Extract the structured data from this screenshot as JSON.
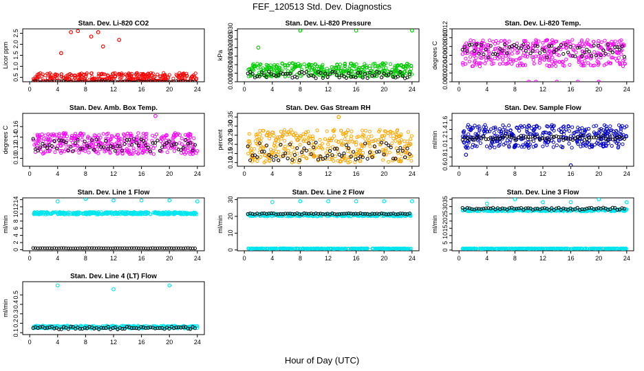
{
  "title": "FEF_120513  Std. Dev. Diagnostics",
  "xlabel": "Hour of Day (UTC)",
  "chart_data": [
    {
      "type": "scatter",
      "title": "Stan. Dev. Li-820 CO2",
      "ylabel": "Licor ppm",
      "xlim": [
        0,
        24
      ],
      "ylim": [
        0.3,
        2.7
      ],
      "xticks": [
        0,
        4,
        8,
        12,
        16,
        20,
        24
      ],
      "yticks": [
        "0.5",
        "1.0",
        "1.5",
        "2.0",
        "2.5"
      ],
      "ytick_values": [
        0.5,
        1.0,
        1.5,
        2.0,
        2.5
      ],
      "series": [
        {
          "color": "#ff0000",
          "base": 0.45,
          "spread": 0.25,
          "outliers": [
            [
              5.9,
              2.55
            ],
            [
              6.9,
              2.6
            ],
            [
              9.8,
              2.55
            ],
            [
              8.8,
              2.35
            ],
            [
              12.8,
              2.2
            ],
            [
              4.5,
              1.6
            ],
            [
              10.5,
              1.9
            ]
          ]
        },
        {
          "color": "#000000",
          "base": 0.3,
          "spread": 0.03,
          "outliers": []
        }
      ]
    },
    {
      "type": "scatter",
      "title": "Stan. Dev. Li-820 Pressure",
      "ylabel": "kPa",
      "xlim": [
        0,
        24
      ],
      "ylim": [
        0,
        0.031
      ],
      "xticks": [
        0,
        4,
        8,
        12,
        16,
        20,
        24
      ],
      "yticks": [
        "0.000",
        "0.005",
        "0.010",
        "0.015",
        "0.020",
        "0.025",
        "0.030"
      ],
      "ytick_values": [
        0,
        0.005,
        0.01,
        0.015,
        0.02,
        0.025,
        0.03
      ],
      "series": [
        {
          "color": "#00cc00",
          "base": 0.007,
          "spread": 0.004,
          "outliers": [
            [
              8,
              0.03
            ],
            [
              16,
              0.03
            ],
            [
              24,
              0.03
            ],
            [
              2,
              0.02
            ]
          ]
        },
        {
          "color": "#000000",
          "base": 0.004,
          "spread": 0.002,
          "outliers": []
        }
      ]
    },
    {
      "type": "scatter",
      "title": "Stan. Dev. Li-820 Temp.",
      "ylabel": "degrees C",
      "xlim": [
        0,
        24
      ],
      "ylim": [
        0,
        0.012
      ],
      "xticks": [
        0,
        4,
        8,
        12,
        16,
        20,
        24
      ],
      "yticks": [
        "0.000",
        "0.002",
        "0.004",
        "0.006",
        "0.008",
        "0.010",
        "0.012"
      ],
      "ytick_values": [
        0,
        0.002,
        0.004,
        0.006,
        0.008,
        0.01,
        0.012
      ],
      "series": [
        {
          "color": "#ff00ff",
          "base": 0.0065,
          "spread": 0.003,
          "outliers": [
            [
              10,
              0.0
            ],
            [
              11,
              0.0
            ],
            [
              14,
              0.0
            ],
            [
              17,
              0.0
            ],
            [
              20,
              0.0
            ]
          ]
        },
        {
          "color": "#000000",
          "base": 0.007,
          "spread": 0.0015,
          "outliers": []
        }
      ]
    },
    {
      "type": "scatter",
      "title": "Stan. Dev. Amb. Box Temp.",
      "ylabel": "degrees C",
      "xlim": [
        0,
        24
      ],
      "ylim": [
        0.085,
        0.185
      ],
      "xticks": [
        0,
        4,
        8,
        12,
        16,
        20,
        24
      ],
      "yticks": [
        "0.10",
        "0.12",
        "0.14",
        "0.16"
      ],
      "ytick_values": [
        0.1,
        0.12,
        0.14,
        0.16
      ],
      "series": [
        {
          "color": "#ff00ff",
          "base": 0.128,
          "spread": 0.02,
          "outliers": [
            [
              18,
              0.18
            ]
          ]
        },
        {
          "color": "#000000",
          "base": 0.125,
          "spread": 0.012,
          "outliers": []
        }
      ]
    },
    {
      "type": "scatter",
      "title": "Stan. Dev. Gas Stream RH",
      "ylabel": "percent",
      "xlim": [
        0,
        24
      ],
      "ylim": [
        0.08,
        0.37
      ],
      "xticks": [
        0,
        4,
        8,
        12,
        16,
        20,
        24
      ],
      "yticks": [
        "0.10",
        "0.15",
        "0.20",
        "0.25",
        "0.30",
        "0.35"
      ],
      "ytick_values": [
        0.1,
        0.15,
        0.2,
        0.25,
        0.3,
        0.35
      ],
      "series": [
        {
          "color": "#ffa500",
          "base": 0.19,
          "spread": 0.09,
          "outliers": [
            [
              13.5,
              0.35
            ]
          ]
        },
        {
          "color": "#000000",
          "base": 0.16,
          "spread": 0.05,
          "outliers": []
        }
      ]
    },
    {
      "type": "scatter",
      "title": "Stan. Dev. Sample Flow",
      "ylabel": "ml/min",
      "xlim": [
        0,
        24
      ],
      "ylim": [
        0.6,
        1.75
      ],
      "xticks": [
        0,
        4,
        8,
        12,
        16,
        20,
        24
      ],
      "yticks": [
        "0.6",
        "0.8",
        "1.0",
        "1.2",
        "1.4",
        "1.6"
      ],
      "ytick_values": [
        0.6,
        0.8,
        1.0,
        1.2,
        1.4,
        1.6
      ],
      "series": [
        {
          "color": "#0000cc",
          "base": 1.25,
          "spread": 0.25,
          "outliers": [
            [
              16,
              0.62
            ],
            [
              1,
              0.85
            ]
          ]
        },
        {
          "color": "#000000",
          "base": 1.22,
          "spread": 0.05,
          "outliers": []
        }
      ]
    },
    {
      "type": "scatter",
      "title": "Stan. Dev. Line 1 Flow",
      "ylabel": "ml/min",
      "xlim": [
        0,
        24
      ],
      "ylim": [
        -0.3,
        14.5
      ],
      "xticks": [
        0,
        4,
        8,
        12,
        16,
        20,
        24
      ],
      "yticks": [
        "0",
        "2",
        "4",
        "6",
        "8",
        "10",
        "12",
        "14"
      ],
      "ytick_values": [
        0,
        2,
        4,
        6,
        8,
        10,
        12,
        14
      ],
      "series": [
        {
          "color": "#00e5ee",
          "base": 10.2,
          "spread": 0.35,
          "outliers": [
            [
              4,
              13.5
            ],
            [
              8,
              14.2
            ],
            [
              12,
              13.8
            ],
            [
              16,
              13.8
            ],
            [
              20,
              13.8
            ],
            [
              24,
              13.5
            ]
          ]
        },
        {
          "color": "#000000",
          "base": 0.4,
          "spread": 0.05,
          "outliers": []
        }
      ]
    },
    {
      "type": "scatter",
      "title": "Stan. Dev. Line 2 Flow",
      "ylabel": "ml/min",
      "xlim": [
        0,
        24
      ],
      "ylim": [
        -0.5,
        31
      ],
      "xticks": [
        0,
        4,
        8,
        12,
        16,
        20,
        24
      ],
      "yticks": [
        "0",
        "10",
        "20",
        "30"
      ],
      "ytick_values": [
        0,
        10,
        20,
        30
      ],
      "series": [
        {
          "color": "#00e5ee",
          "base": 20.8,
          "spread": 0.8,
          "outliers": [
            [
              4,
              28.5
            ],
            [
              8,
              29
            ],
            [
              12,
              29
            ],
            [
              16,
              29
            ],
            [
              20,
              29
            ],
            [
              24,
              29
            ]
          ]
        },
        {
          "color": "#00e5ee",
          "base": 0.8,
          "spread": 0.2,
          "outliers": []
        },
        {
          "color": "#000000",
          "base": 21.5,
          "spread": 0.4,
          "outliers": []
        }
      ]
    },
    {
      "type": "scatter",
      "title": "Stan. Dev. Line 3 Flow",
      "ylabel": "ml/min",
      "xlim": [
        0,
        24
      ],
      "ylim": [
        -0.5,
        36
      ],
      "xticks": [
        0,
        4,
        8,
        12,
        16,
        20,
        24
      ],
      "yticks": [
        "0",
        "5",
        "10",
        "15",
        "20",
        "25",
        "30",
        "35"
      ],
      "ytick_values": [
        0,
        5,
        10,
        15,
        20,
        25,
        30,
        35
      ],
      "series": [
        {
          "color": "#00e5ee",
          "base": 27.5,
          "spread": 0.8,
          "outliers": [
            [
              4,
              32
            ],
            [
              8,
              35
            ],
            [
              12,
              33
            ],
            [
              16,
              33
            ],
            [
              20,
              35
            ],
            [
              24,
              33
            ]
          ]
        },
        {
          "color": "#00e5ee",
          "base": 1.0,
          "spread": 0.2,
          "outliers": []
        },
        {
          "color": "#000000",
          "base": 28.5,
          "spread": 0.8,
          "outliers": []
        }
      ]
    },
    {
      "type": "scatter",
      "title": "Stan. Dev. Line 4 (LT) Flow",
      "ylabel": "ml/min",
      "xlim": [
        0,
        24
      ],
      "ylim": [
        0.08,
        0.64
      ],
      "xticks": [
        0,
        4,
        8,
        12,
        16,
        20,
        24
      ],
      "yticks": [
        "0.1",
        "0.2",
        "0.3",
        "0.4",
        "0.5"
      ],
      "ytick_values": [
        0.1,
        0.2,
        0.3,
        0.4,
        0.5
      ],
      "series": [
        {
          "color": "#00e5ee",
          "base": 0.16,
          "spread": 0.015,
          "outliers": [
            [
              4,
              0.6
            ],
            [
              12,
              0.56
            ],
            [
              20,
              0.6
            ]
          ]
        },
        {
          "color": "#000000",
          "base": 0.15,
          "spread": 0.015,
          "outliers": []
        }
      ]
    }
  ]
}
